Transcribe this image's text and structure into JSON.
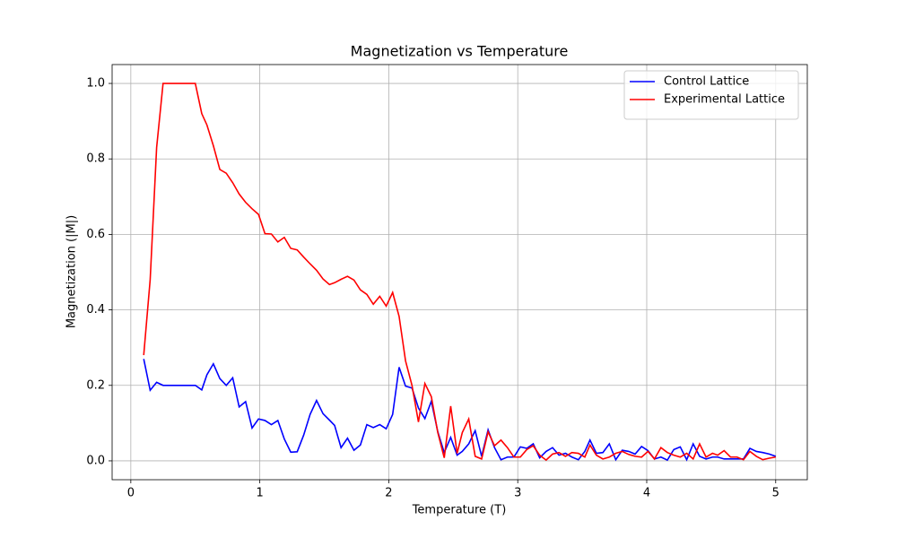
{
  "chart_data": {
    "type": "line",
    "title": "Magnetization vs Temperature",
    "xlabel": "Temperature (T)",
    "ylabel": "Magnetization (|M|)",
    "x": [
      0.1,
      0.15,
      0.2,
      0.25,
      0.3,
      0.35,
      0.4,
      0.45,
      0.5,
      0.55,
      0.59,
      0.64,
      0.69,
      0.74,
      0.79,
      0.84,
      0.89,
      0.94,
      0.99,
      1.04,
      1.09,
      1.14,
      1.19,
      1.24,
      1.29,
      1.34,
      1.39,
      1.44,
      1.49,
      1.54,
      1.58,
      1.63,
      1.68,
      1.73,
      1.78,
      1.83,
      1.88,
      1.93,
      1.98,
      2.03,
      2.08,
      2.13,
      2.18,
      2.23,
      2.28,
      2.33,
      2.38,
      2.43,
      2.48,
      2.53,
      2.57,
      2.62,
      2.67,
      2.72,
      2.77,
      2.82,
      2.87,
      2.92,
      2.97,
      3.02,
      3.07,
      3.12,
      3.17,
      3.22,
      3.27,
      3.32,
      3.37,
      3.42,
      3.47,
      3.52,
      3.56,
      3.61,
      3.66,
      3.71,
      3.76,
      3.81,
      3.86,
      3.91,
      3.96,
      4.01,
      4.06,
      4.11,
      4.16,
      4.21,
      4.26,
      4.31,
      4.36,
      4.41,
      4.46,
      4.51,
      4.55,
      4.6,
      4.65,
      4.7,
      4.75,
      4.8,
      4.85,
      4.9,
      4.95,
      5.0
    ],
    "series": [
      {
        "name": "Control Lattice",
        "color": "#0000ff",
        "values": [
          0.27,
          0.187,
          0.208,
          0.2,
          0.2,
          0.2,
          0.2,
          0.2,
          0.2,
          0.188,
          0.228,
          0.257,
          0.218,
          0.2,
          0.22,
          0.143,
          0.157,
          0.087,
          0.111,
          0.107,
          0.096,
          0.107,
          0.058,
          0.023,
          0.024,
          0.068,
          0.123,
          0.16,
          0.125,
          0.108,
          0.094,
          0.035,
          0.06,
          0.028,
          0.042,
          0.096,
          0.088,
          0.096,
          0.085,
          0.123,
          0.248,
          0.198,
          0.193,
          0.14,
          0.112,
          0.158,
          0.077,
          0.022,
          0.062,
          0.015,
          0.025,
          0.045,
          0.08,
          0.012,
          0.082,
          0.035,
          0.003,
          0.01,
          0.01,
          0.037,
          0.033,
          0.045,
          0.008,
          0.025,
          0.035,
          0.015,
          0.02,
          0.01,
          0.003,
          0.025,
          0.055,
          0.02,
          0.022,
          0.045,
          0.003,
          0.028,
          0.025,
          0.018,
          0.038,
          0.027,
          0.005,
          0.01,
          0.002,
          0.03,
          0.037,
          0.003,
          0.045,
          0.012,
          0.005,
          0.01,
          0.01,
          0.005,
          0.005,
          0.005,
          0.005,
          0.033,
          0.025,
          0.022,
          0.018,
          0.012
        ]
      },
      {
        "name": "Experimental Lattice",
        "color": "#ff0000",
        "values": [
          0.28,
          0.48,
          0.83,
          1.0,
          1.0,
          1.0,
          1.0,
          1.0,
          1.0,
          0.92,
          0.89,
          0.835,
          0.772,
          0.762,
          0.737,
          0.707,
          0.685,
          0.668,
          0.653,
          0.602,
          0.601,
          0.58,
          0.592,
          0.563,
          0.559,
          0.54,
          0.522,
          0.505,
          0.482,
          0.467,
          0.472,
          0.481,
          0.489,
          0.479,
          0.453,
          0.441,
          0.415,
          0.436,
          0.41,
          0.446,
          0.383,
          0.265,
          0.2,
          0.103,
          0.205,
          0.17,
          0.075,
          0.008,
          0.145,
          0.02,
          0.075,
          0.111,
          0.012,
          0.005,
          0.077,
          0.04,
          0.055,
          0.035,
          0.01,
          0.01,
          0.03,
          0.04,
          0.015,
          0.002,
          0.018,
          0.022,
          0.012,
          0.022,
          0.02,
          0.01,
          0.042,
          0.015,
          0.005,
          0.01,
          0.02,
          0.025,
          0.017,
          0.012,
          0.01,
          0.025,
          0.005,
          0.035,
          0.022,
          0.015,
          0.01,
          0.02,
          0.005,
          0.045,
          0.01,
          0.02,
          0.015,
          0.027,
          0.01,
          0.01,
          0.003,
          0.025,
          0.012,
          0.003,
          0.007,
          0.01
        ]
      }
    ],
    "xlim": [
      -0.145,
      5.245
    ],
    "xticks": [
      0,
      1,
      2,
      3,
      4,
      5
    ],
    "ylim": [
      -0.05,
      1.05
    ],
    "yticks": [
      {
        "value": 0,
        "label": "0.0"
      },
      0.2,
      0.4,
      0.6,
      0.8,
      {
        "value": 1,
        "label": "1.0"
      }
    ],
    "grid": true,
    "legend": "upper right"
  }
}
